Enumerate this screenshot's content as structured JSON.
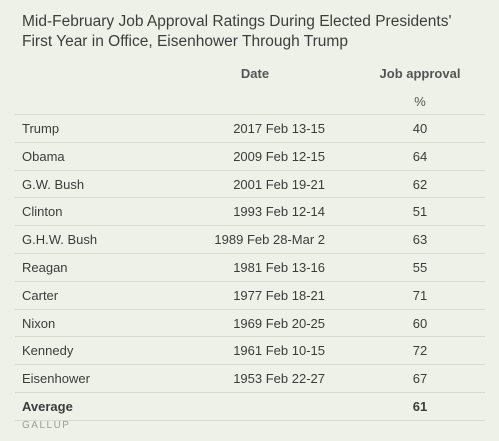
{
  "chart_data": {
    "type": "table",
    "title": "Mid-February Job Approval Ratings During Elected Presidents' First Year in Office, Eisenhower Through Trump",
    "columns": [
      "",
      "Date",
      "Job approval"
    ],
    "unit": "%",
    "rows": [
      {
        "president": "Trump",
        "date": "2017 Feb 13-15",
        "approval": "40"
      },
      {
        "president": "Obama",
        "date": "2009 Feb 12-15",
        "approval": "64"
      },
      {
        "president": "G.W. Bush",
        "date": "2001 Feb 19-21",
        "approval": "62"
      },
      {
        "president": "Clinton",
        "date": "1993 Feb 12-14",
        "approval": "51"
      },
      {
        "president": "G.H.W. Bush",
        "date": "1989 Feb 28-Mar 2",
        "approval": "63"
      },
      {
        "president": "Reagan",
        "date": "1981 Feb 13-16",
        "approval": "55"
      },
      {
        "president": "Carter",
        "date": "1977 Feb 18-21",
        "approval": "71"
      },
      {
        "president": "Nixon",
        "date": "1969 Feb 20-25",
        "approval": "60"
      },
      {
        "president": "Kennedy",
        "date": "1961 Feb 10-15",
        "approval": "72"
      },
      {
        "president": "Eisenhower",
        "date": "1953 Feb 22-27",
        "approval": "67"
      }
    ],
    "average": {
      "label": "Average",
      "approval": "61"
    },
    "source": "GALLUP"
  }
}
